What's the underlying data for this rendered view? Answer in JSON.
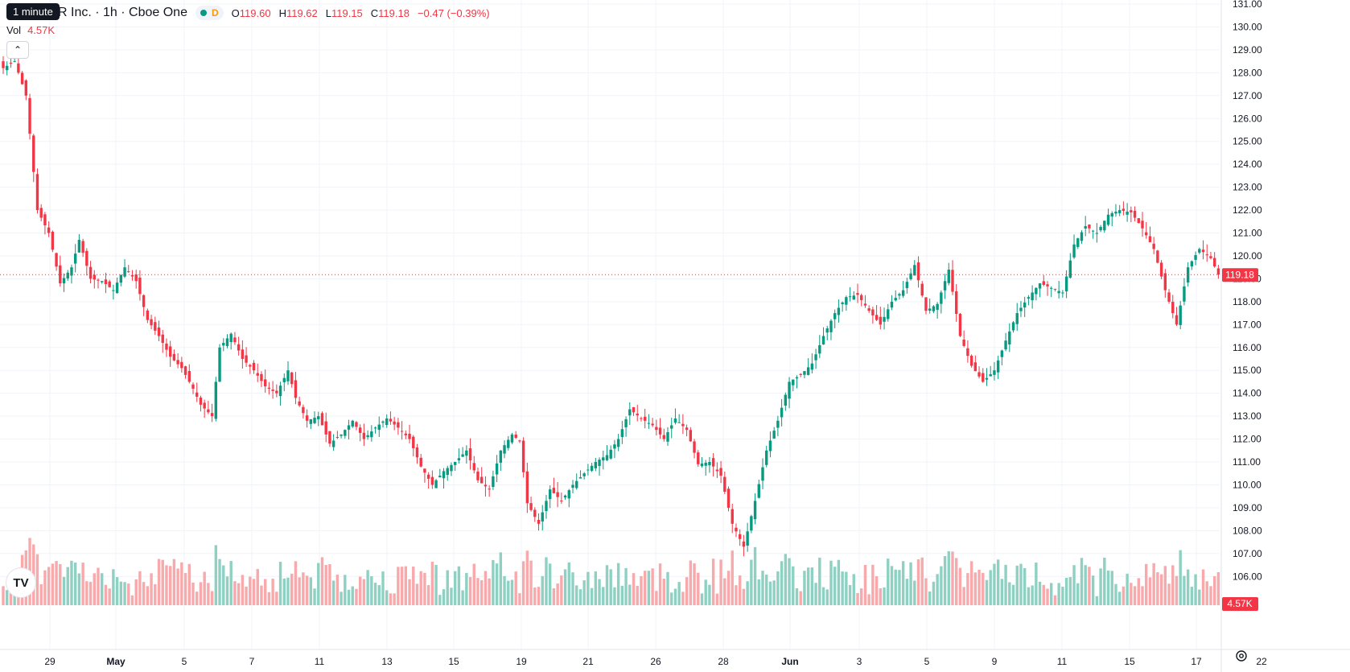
{
  "header": {
    "tooltip": "1 minute",
    "symbol": "R Inc. · 1h · Cboe One",
    "d_label": "D",
    "ohlc": [
      {
        "k": "O",
        "v": "119.60"
      },
      {
        "k": "H",
        "v": "119.62"
      },
      {
        "k": "L",
        "v": "119.15"
      },
      {
        "k": "C",
        "v": "119.18"
      },
      {
        "k": "",
        "v": "−0.47 (−0.39%)"
      }
    ],
    "vol_label": "Vol",
    "vol_value": "4.57K",
    "logo": "TV"
  },
  "colors": {
    "up": "#089981",
    "down": "#f23645",
    "up_vol": "#8ed1c3",
    "down_vol": "#f7a9ab",
    "grid": "#f0f3fa",
    "text": "#131722"
  },
  "chart_data": {
    "type": "candlestick",
    "title": "",
    "price_labels": [
      "131.00",
      "130.00",
      "129.00",
      "128.00",
      "127.00",
      "126.00",
      "125.00",
      "124.00",
      "123.00",
      "122.00",
      "121.00",
      "120.00",
      "119.00",
      "118.00",
      "117.00",
      "116.00",
      "115.00",
      "114.00",
      "113.00",
      "112.00",
      "111.00",
      "110.00",
      "109.00",
      "108.00",
      "107.00",
      "106.00"
    ],
    "ylim": [
      105.5,
      131.2
    ],
    "last_price_label": "119.18",
    "last_price": 119.18,
    "last_volume_label": "4.57K",
    "x_ticks": [
      "29",
      "May",
      "5",
      "7",
      "11",
      "13",
      "15",
      "19",
      "21",
      "26",
      "28",
      "Jun",
      "3",
      "5",
      "9",
      "11",
      "15",
      "17",
      "22"
    ],
    "close_path": [
      [
        0,
        128.2
      ],
      [
        3,
        128.5
      ],
      [
        6,
        127.0
      ],
      [
        9,
        122.0
      ],
      [
        12,
        121.0
      ],
      [
        15,
        118.8
      ],
      [
        18,
        119.5
      ],
      [
        20,
        120.7
      ],
      [
        23,
        119.0
      ],
      [
        26,
        118.9
      ],
      [
        29,
        118.5
      ],
      [
        32,
        119.5
      ],
      [
        35,
        118.9
      ],
      [
        38,
        117.2
      ],
      [
        41,
        116.5
      ],
      [
        44,
        115.6
      ],
      [
        47,
        115.1
      ],
      [
        50,
        114.2
      ],
      [
        52,
        113.5
      ],
      [
        55,
        113.0
      ],
      [
        57,
        116.0
      ],
      [
        60,
        116.6
      ],
      [
        63,
        115.5
      ],
      [
        66,
        115.0
      ],
      [
        69,
        114.3
      ],
      [
        72,
        114.0
      ],
      [
        75,
        115.0
      ],
      [
        77,
        113.8
      ],
      [
        80,
        112.8
      ],
      [
        83,
        113.0
      ],
      [
        86,
        111.8
      ],
      [
        89,
        112.2
      ],
      [
        92,
        112.8
      ],
      [
        95,
        112.0
      ],
      [
        98,
        112.5
      ],
      [
        101,
        112.9
      ],
      [
        104,
        112.5
      ],
      [
        107,
        112.0
      ],
      [
        110,
        110.8
      ],
      [
        113,
        110.0
      ],
      [
        116,
        110.6
      ],
      [
        119,
        111.0
      ],
      [
        122,
        111.5
      ],
      [
        125,
        110.2
      ],
      [
        128,
        109.8
      ],
      [
        131,
        111.5
      ],
      [
        134,
        112.2
      ],
      [
        136,
        111.9
      ],
      [
        138,
        109.2
      ],
      [
        141,
        108.3
      ],
      [
        144,
        109.8
      ],
      [
        147,
        109.3
      ],
      [
        150,
        110.0
      ],
      [
        153,
        110.5
      ],
      [
        156,
        111.0
      ],
      [
        159,
        111.3
      ],
      [
        162,
        112.0
      ],
      [
        165,
        113.3
      ],
      [
        168,
        112.9
      ],
      [
        171,
        112.6
      ],
      [
        174,
        112.0
      ],
      [
        177,
        112.9
      ],
      [
        180,
        112.4
      ],
      [
        183,
        110.9
      ],
      [
        186,
        111.0
      ],
      [
        189,
        110.4
      ],
      [
        192,
        108.3
      ],
      [
        195,
        107.3
      ],
      [
        198,
        109.3
      ],
      [
        201,
        111.5
      ],
      [
        204,
        112.8
      ],
      [
        207,
        114.5
      ],
      [
        210,
        114.8
      ],
      [
        213,
        115.3
      ],
      [
        216,
        116.5
      ],
      [
        219,
        117.5
      ],
      [
        222,
        118.2
      ],
      [
        225,
        118.3
      ],
      [
        228,
        117.6
      ],
      [
        231,
        117.0
      ],
      [
        234,
        118.0
      ],
      [
        237,
        118.5
      ],
      [
        240,
        119.6
      ],
      [
        243,
        117.6
      ],
      [
        246,
        117.9
      ],
      [
        249,
        119.4
      ],
      [
        252,
        116.5
      ],
      [
        255,
        115.2
      ],
      [
        258,
        114.5
      ],
      [
        261,
        115.0
      ],
      [
        264,
        116.3
      ],
      [
        267,
        117.5
      ],
      [
        270,
        118.2
      ],
      [
        273,
        118.8
      ],
      [
        276,
        118.6
      ],
      [
        279,
        118.4
      ],
      [
        282,
        120.5
      ],
      [
        285,
        121.3
      ],
      [
        288,
        121.0
      ],
      [
        291,
        121.8
      ],
      [
        294,
        122.0
      ],
      [
        297,
        121.9
      ],
      [
        300,
        121.2
      ],
      [
        303,
        120.3
      ],
      [
        306,
        118.5
      ],
      [
        309,
        117.0
      ],
      [
        312,
        119.5
      ],
      [
        315,
        120.3
      ],
      [
        318,
        119.9
      ],
      [
        320,
        119.18
      ]
    ]
  }
}
